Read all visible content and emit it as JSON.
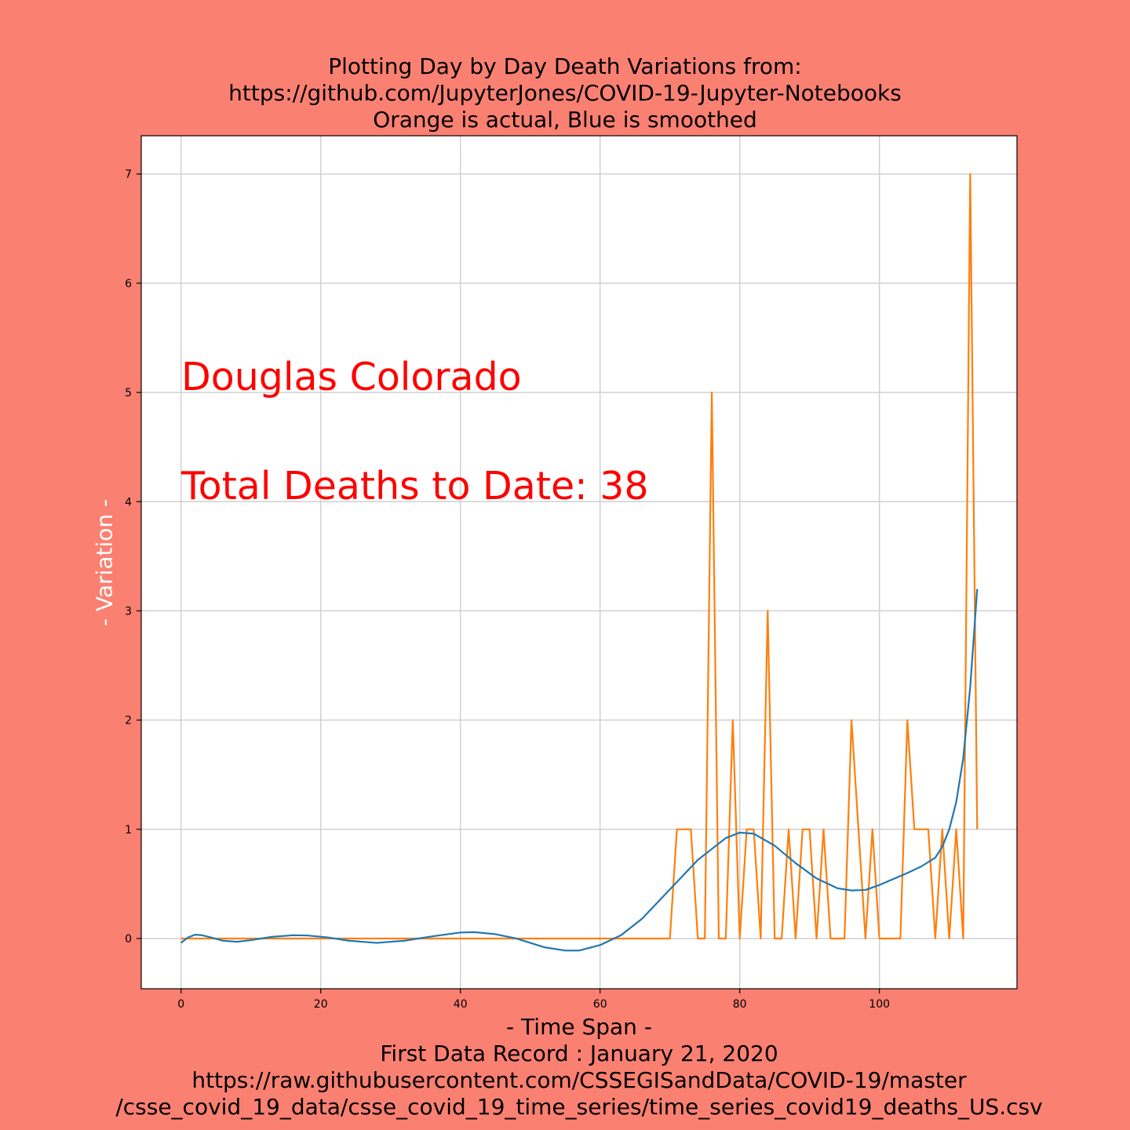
{
  "chart_data": {
    "type": "line",
    "title_lines": [
      "Plotting Day by Day Death Variations from:",
      "https://github.com/JupyterJones/COVID-19-Jupyter-Notebooks",
      "Orange is actual, Blue is smoothed"
    ],
    "xlabel_lines": [
      "- Time Span -",
      "First Data Record : January 21, 2020",
      "https://raw.githubusercontent.com/CSSEGISandData/COVID-19/master",
      "/csse_covid_19_data/csse_covid_19_time_series/time_series_covid19_deaths_US.csv"
    ],
    "ylabel": "- Variation -",
    "annotations": [
      "Douglas Colorado",
      "Total Deaths to Date: 38"
    ],
    "xlim": [
      -5.7,
      119.7
    ],
    "ylim": [
      -0.46,
      7.35
    ],
    "xticks": [
      0,
      20,
      40,
      60,
      80,
      100
    ],
    "yticks": [
      0,
      1,
      2,
      3,
      4,
      5,
      6,
      7
    ],
    "grid": true,
    "colors": {
      "actual": "#ff7f0e",
      "smoothed": "#1f77b4",
      "background": "#fa8072",
      "annotation": "#ff0000"
    },
    "series": [
      {
        "key": "actual",
        "values": [
          0,
          0,
          0,
          0,
          0,
          0,
          0,
          0,
          0,
          0,
          0,
          0,
          0,
          0,
          0,
          0,
          0,
          0,
          0,
          0,
          0,
          0,
          0,
          0,
          0,
          0,
          0,
          0,
          0,
          0,
          0,
          0,
          0,
          0,
          0,
          0,
          0,
          0,
          0,
          0,
          0,
          0,
          0,
          0,
          0,
          0,
          0,
          0,
          0,
          0,
          0,
          0,
          0,
          0,
          0,
          0,
          0,
          0,
          0,
          0,
          0,
          0,
          0,
          0,
          0,
          0,
          0,
          0,
          0,
          0,
          0,
          1,
          1,
          1,
          0,
          0,
          5,
          0,
          0,
          2,
          0,
          1,
          1,
          0,
          3,
          0,
          0,
          1,
          0,
          1,
          1,
          0,
          1,
          0,
          0,
          0,
          2,
          1,
          0,
          1,
          0,
          0,
          0,
          0,
          2,
          1,
          1,
          1,
          0,
          1,
          0,
          1,
          0,
          7,
          1
        ]
      },
      {
        "key": "smoothed",
        "points": [
          [
            0,
            -0.04
          ],
          [
            1,
            0.01
          ],
          [
            2,
            0.035
          ],
          [
            3,
            0.03
          ],
          [
            4,
            0.015
          ],
          [
            6,
            -0.02
          ],
          [
            8,
            -0.03
          ],
          [
            10,
            -0.015
          ],
          [
            13,
            0.015
          ],
          [
            16,
            0.03
          ],
          [
            18,
            0.028
          ],
          [
            21,
            0.01
          ],
          [
            24,
            -0.02
          ],
          [
            28,
            -0.04
          ],
          [
            32,
            -0.02
          ],
          [
            36,
            0.02
          ],
          [
            40,
            0.055
          ],
          [
            42,
            0.058
          ],
          [
            45,
            0.04
          ],
          [
            48,
            0
          ],
          [
            52,
            -0.08
          ],
          [
            55,
            -0.11
          ],
          [
            57,
            -0.11
          ],
          [
            60,
            -0.06
          ],
          [
            63,
            0.03
          ],
          [
            66,
            0.18
          ],
          [
            70,
            0.45
          ],
          [
            74,
            0.72
          ],
          [
            78,
            0.92
          ],
          [
            80,
            0.97
          ],
          [
            82,
            0.96
          ],
          [
            85,
            0.85
          ],
          [
            88,
            0.69
          ],
          [
            91,
            0.55
          ],
          [
            94,
            0.46
          ],
          [
            96,
            0.44
          ],
          [
            98,
            0.445
          ],
          [
            100,
            0.49
          ],
          [
            102,
            0.545
          ],
          [
            104,
            0.6
          ],
          [
            106,
            0.66
          ],
          [
            108,
            0.74
          ],
          [
            109,
            0.84
          ],
          [
            110,
            1.0
          ],
          [
            111,
            1.25
          ],
          [
            112,
            1.65
          ],
          [
            113,
            2.3
          ],
          [
            114,
            3.2
          ]
        ]
      }
    ]
  }
}
